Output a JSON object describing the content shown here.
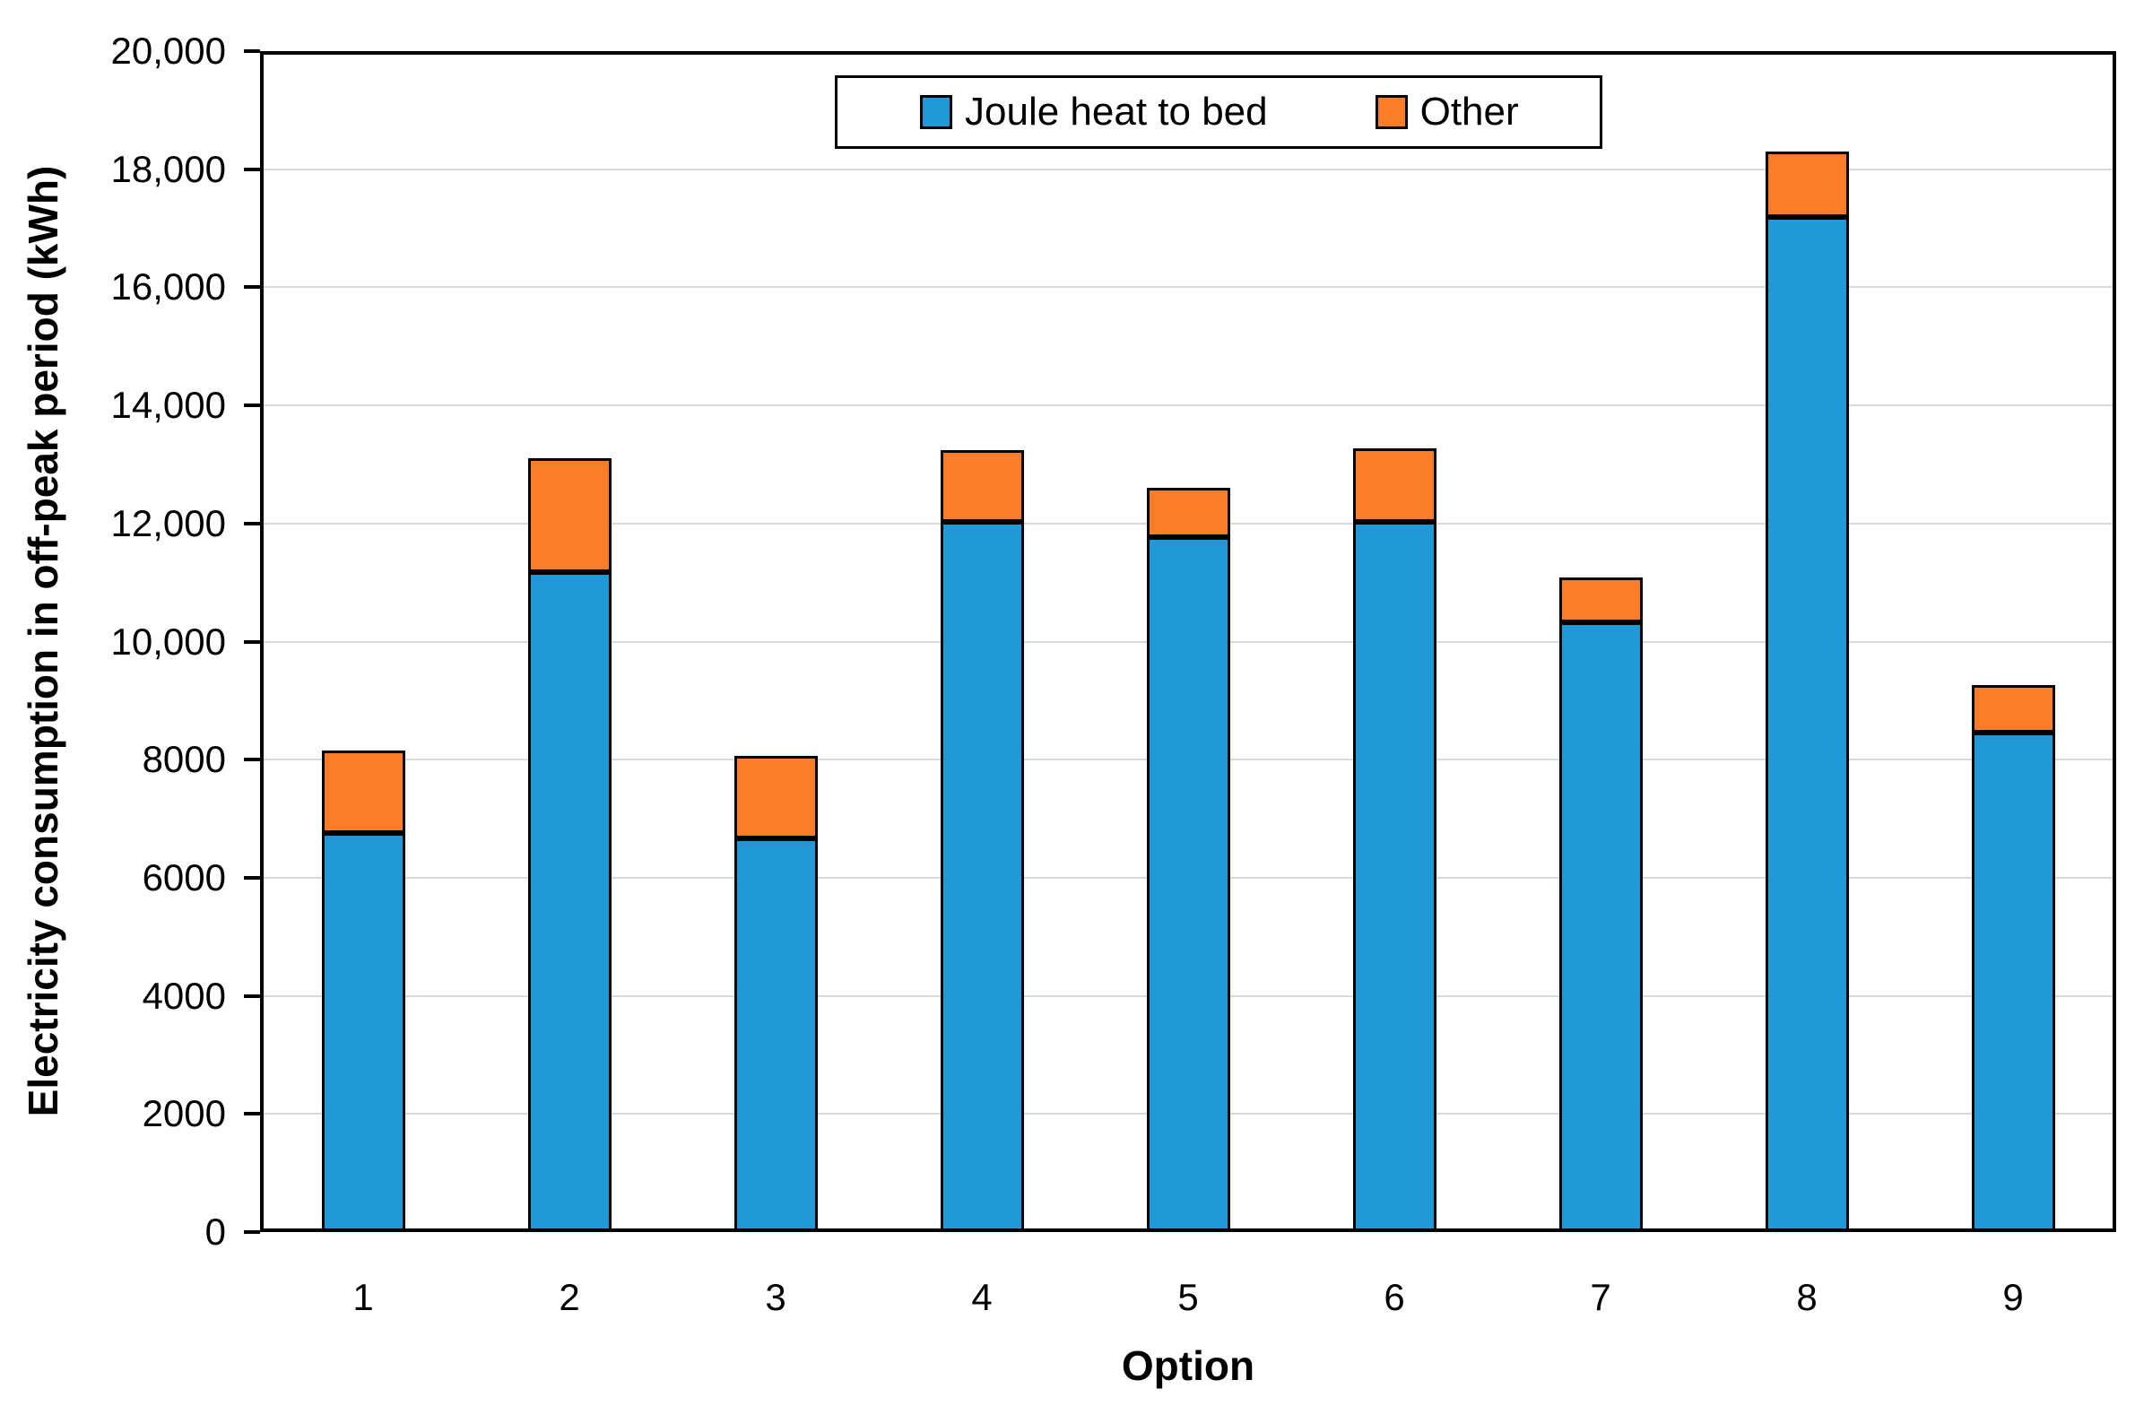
{
  "chart_data": {
    "type": "bar",
    "stacked": true,
    "title": "",
    "xlabel": "Option",
    "ylabel": "Electricity consumption in off-peak period (kWh)",
    "categories": [
      "1",
      "2",
      "3",
      "4",
      "5",
      "6",
      "7",
      "8",
      "9"
    ],
    "series": [
      {
        "name": "Joule heat to bed",
        "color": "#2199d9",
        "values": [
          6760,
          11180,
          6670,
          12020,
          11770,
          12030,
          10320,
          17190,
          8460
        ]
      },
      {
        "name": "Other",
        "color": "#fb7d27",
        "values": [
          1390,
          1920,
          1400,
          1220,
          840,
          1240,
          770,
          1110,
          800
        ]
      }
    ],
    "stack_totals": [
      8150,
      13100,
      8070,
      13240,
      12610,
      13270,
      11090,
      18300,
      9260
    ],
    "ylim": [
      0,
      20000
    ],
    "y_ticks": [
      0,
      2000,
      4000,
      6000,
      8000,
      10000,
      12000,
      14000,
      16000,
      18000,
      20000
    ],
    "y_tick_labels": [
      "0",
      "2000",
      "4000",
      "6000",
      "8000",
      "10,000",
      "12,000",
      "14,000",
      "16,000",
      "18,000",
      "20,000"
    ],
    "grid": "horizontal",
    "legend_position": "top-center-inside",
    "colors": {
      "background": "#ffffff",
      "axis": "#000000",
      "gridline": "#d9d9d9",
      "bar_border": "#000000"
    }
  }
}
